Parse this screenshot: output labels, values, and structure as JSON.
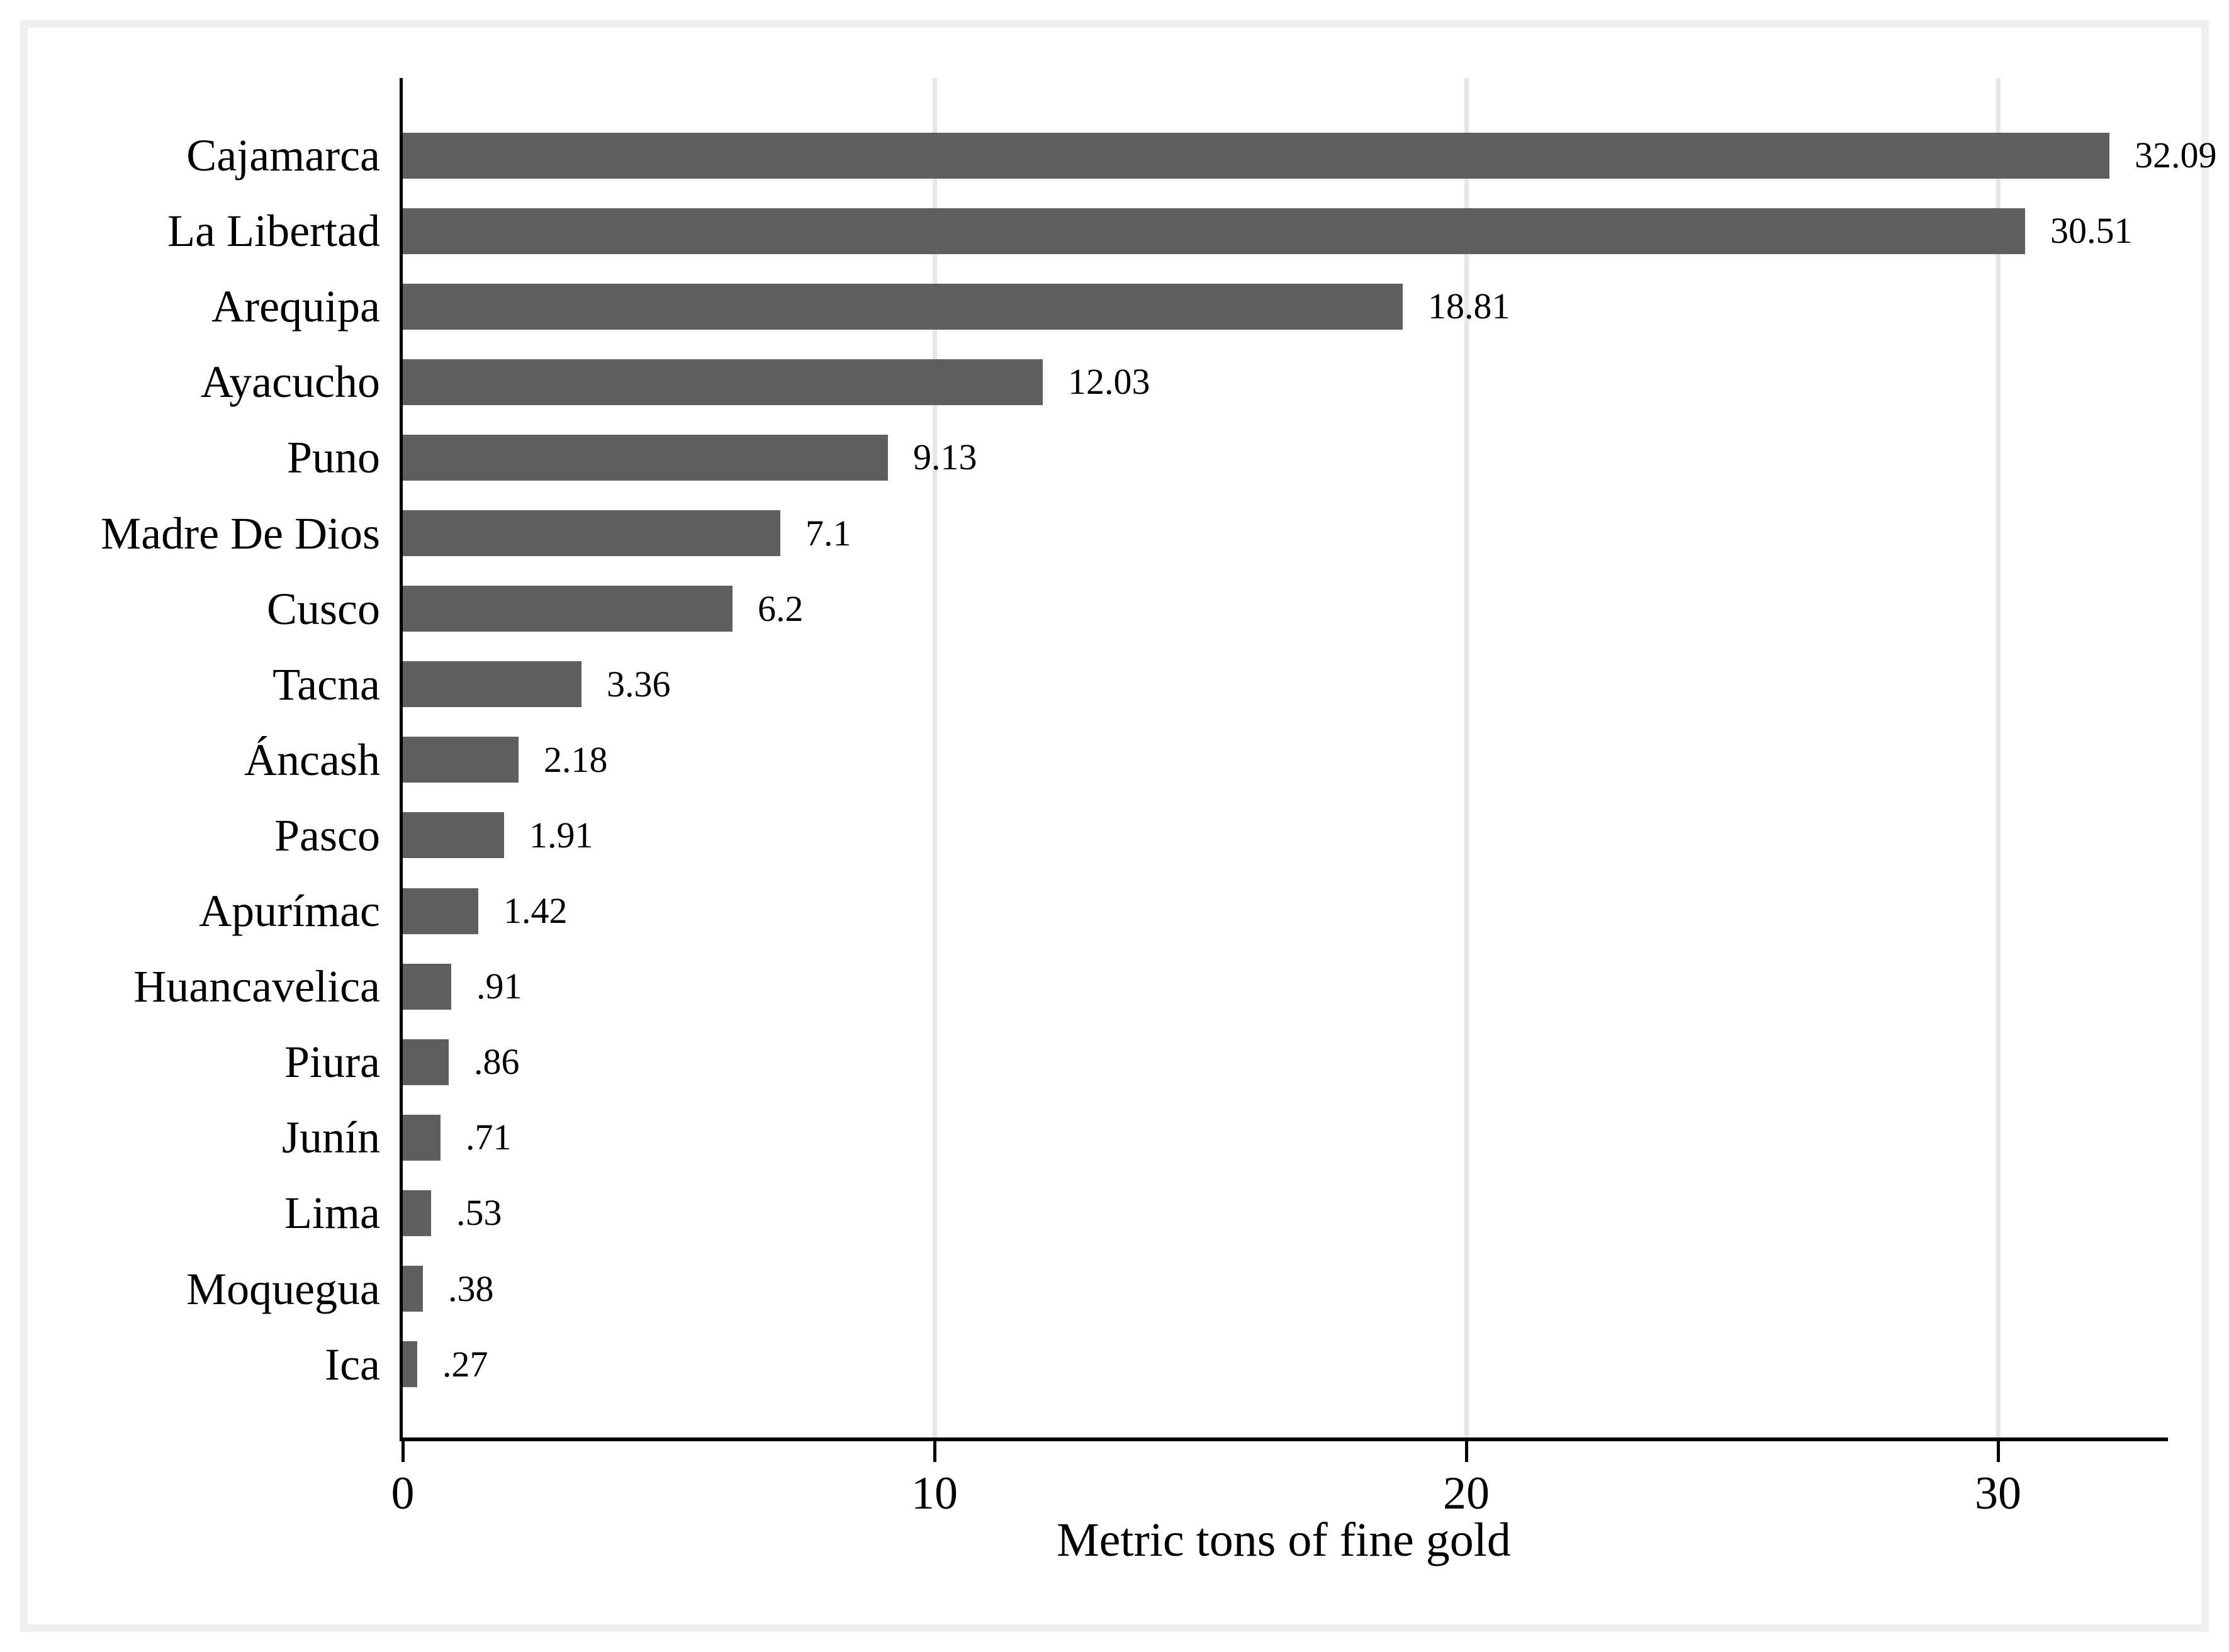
{
  "chart_data": {
    "type": "bar",
    "orientation": "horizontal",
    "title": "",
    "xlabel": "Metric tons of fine gold",
    "ylabel": "",
    "categories": [
      "Cajamarca",
      "La Libertad",
      "Arequipa",
      "Ayacucho",
      "Puno",
      "Madre De Dios",
      "Cusco",
      "Tacna",
      "Áncash",
      "Pasco",
      "Apurímac",
      "Huancavelica",
      "Piura",
      "Junín",
      "Lima",
      "Moquegua",
      "Ica"
    ],
    "values": [
      32.09,
      30.51,
      18.81,
      12.03,
      9.13,
      7.1,
      6.2,
      3.36,
      2.18,
      1.91,
      1.42,
      0.91,
      0.86,
      0.71,
      0.53,
      0.38,
      0.27
    ],
    "value_labels": [
      "32.09",
      "30.51",
      "18.81",
      "12.03",
      "9.13",
      "7.1",
      "6.2",
      "3.36",
      "2.18",
      "1.91",
      "1.42",
      ".91",
      ".86",
      ".71",
      ".53",
      ".38",
      ".27"
    ],
    "xticks": [
      0,
      10,
      20,
      30
    ],
    "xtick_labels": [
      "0",
      "10",
      "20",
      "30"
    ],
    "xlim": [
      0,
      33.2
    ],
    "grid": "vertical gridlines at 10, 20, 30",
    "legend": "none",
    "colors": {
      "bar": "#5f5f5f",
      "gridline": "#e6e6e6",
      "axis": "#000000",
      "frame_border": "#efefef",
      "background": "#ffffff"
    }
  }
}
